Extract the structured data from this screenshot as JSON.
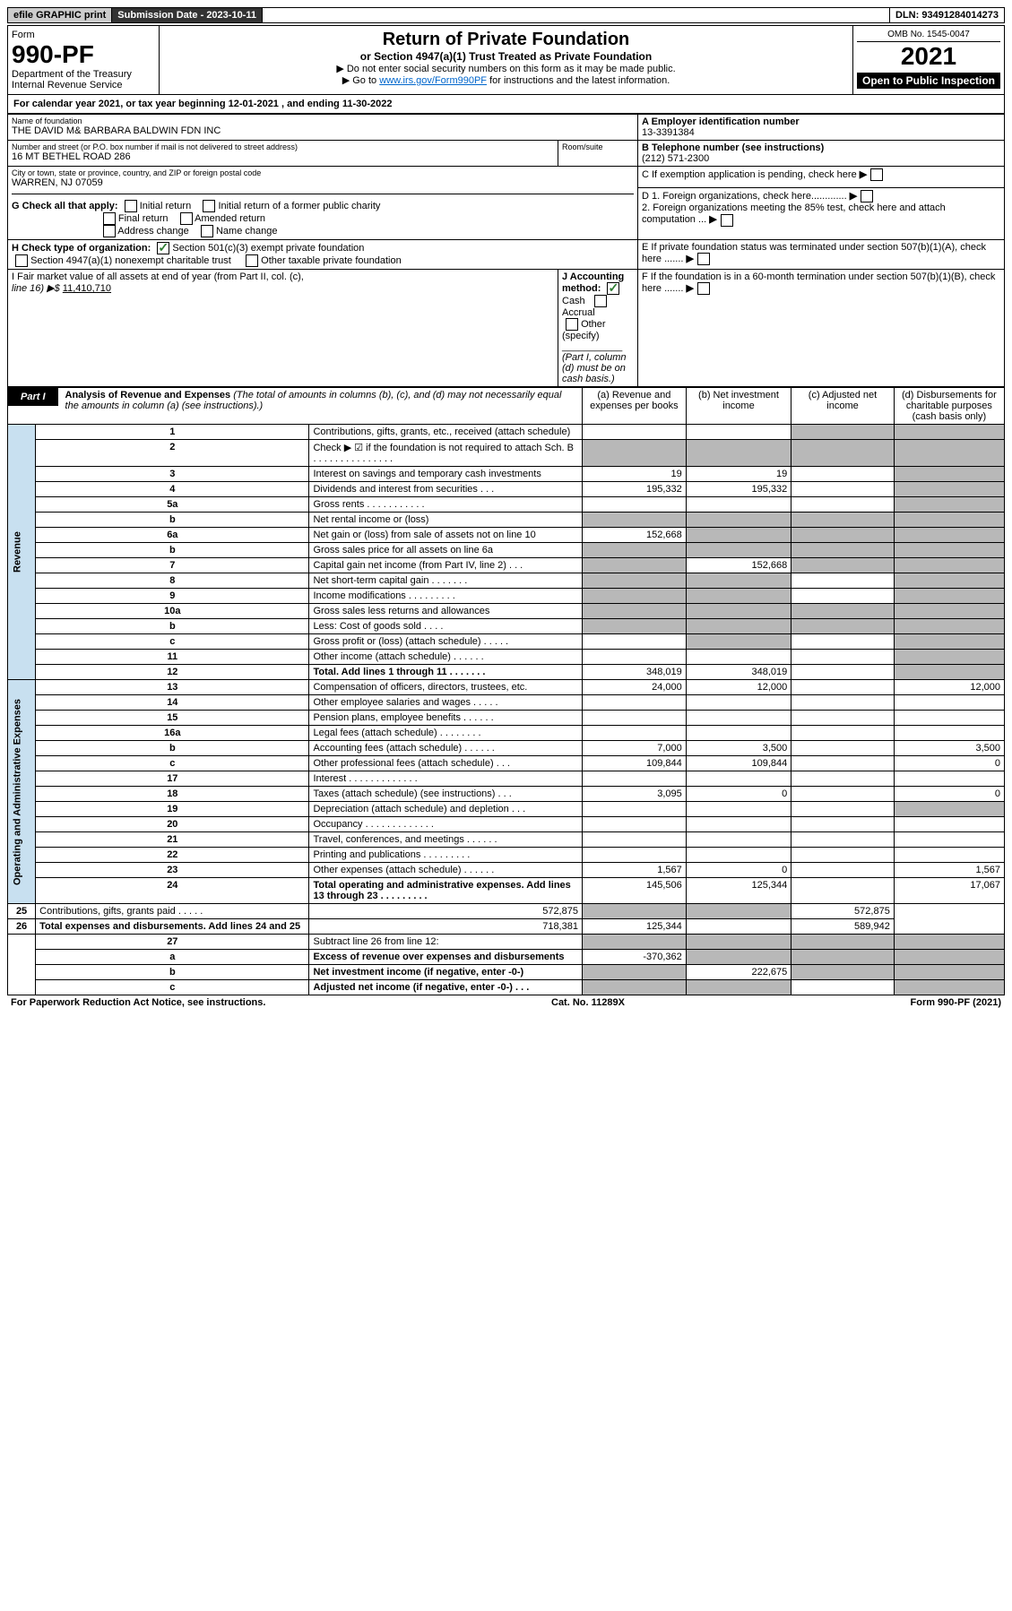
{
  "topbar": {
    "efile": "efile GRAPHIC print",
    "subdate_label": "Submission Date - 2023-10-11",
    "dln": "DLN: 93491284014273"
  },
  "header": {
    "form_word": "Form",
    "form_no": "990-PF",
    "dept": "Department of the Treasury",
    "irs": "Internal Revenue Service",
    "title": "Return of Private Foundation",
    "subtitle": "or Section 4947(a)(1) Trust Treated as Private Foundation",
    "instr1": "▶ Do not enter social security numbers on this form as it may be made public.",
    "instr2_pre": "▶ Go to ",
    "instr2_link": "www.irs.gov/Form990PF",
    "instr2_post": " for instructions and the latest information.",
    "omb": "OMB No. 1545-0047",
    "year": "2021",
    "open": "Open to Public Inspection"
  },
  "calyear": {
    "text_pre": "For calendar year 2021, or tax year beginning ",
    "begin": "12-01-2021",
    "mid": " , and ending ",
    "end": "11-30-2022"
  },
  "id": {
    "name_label": "Name of foundation",
    "name": "THE DAVID M& BARBARA BALDWIN FDN INC",
    "addr_label": "Number and street (or P.O. box number if mail is not delivered to street address)",
    "room_label": "Room/suite",
    "addr": "16 MT BETHEL ROAD 286",
    "city_label": "City or town, state or province, country, and ZIP or foreign postal code",
    "city": "WARREN, NJ  07059",
    "A_label": "A Employer identification number",
    "A_val": "13-3391384",
    "B_label": "B Telephone number (see instructions)",
    "B_val": "(212) 571-2300",
    "C_label": "C If exemption application is pending, check here",
    "D1": "D 1. Foreign organizations, check here.............",
    "D2": "2. Foreign organizations meeting the 85% test, check here and attach computation ...",
    "E": "E  If private foundation status was terminated under section 507(b)(1)(A), check here .......",
    "F": "F  If the foundation is in a 60-month termination under section 507(b)(1)(B), check here .......",
    "G_label": "G Check all that apply:",
    "G_opts": [
      "Initial return",
      "Initial return of a former public charity",
      "Final return",
      "Amended return",
      "Address change",
      "Name change"
    ],
    "H_label": "H Check type of organization:",
    "H_opt1": "Section 501(c)(3) exempt private foundation",
    "H_opt2": "Section 4947(a)(1) nonexempt charitable trust",
    "H_opt3": "Other taxable private foundation",
    "I_label": "I Fair market value of all assets at end of year (from Part II, col. (c),",
    "I_line": "line 16) ▶$ ",
    "I_val": "11,410,710",
    "J_label": "J Accounting method:",
    "J_cash": "Cash",
    "J_accrual": "Accrual",
    "J_other": "Other (specify)",
    "J_note": "(Part I, column (d) must be on cash basis.)"
  },
  "part1": {
    "label": "Part I",
    "title": "Analysis of Revenue and Expenses",
    "note": " (The total of amounts in columns (b), (c), and (d) may not necessarily equal the amounts in column (a) (see instructions).)",
    "col_a": "(a)   Revenue and expenses per books",
    "col_b": "(b)   Net investment income",
    "col_c": "(c)   Adjusted net income",
    "col_d": "(d)   Disbursements for charitable purposes (cash basis only)",
    "sidelabels": {
      "rev": "Revenue",
      "exp": "Operating and Administrative Expenses"
    }
  },
  "rows": [
    {
      "n": "1",
      "d": "Contributions, gifts, grants, etc., received (attach schedule)",
      "a": "",
      "b": "",
      "c": "shade",
      "dd": "shade"
    },
    {
      "n": "2",
      "d": "Check ▶ ☑ if the foundation is not required to attach Sch. B      .   .   .   .   .   .   .   .   .   .   .   .   .   .   .",
      "a": "shade",
      "b": "shade",
      "c": "shade",
      "dd": "shade"
    },
    {
      "n": "3",
      "d": "Interest on savings and temporary cash investments",
      "a": "19",
      "b": "19",
      "c": "",
      "dd": "shade"
    },
    {
      "n": "4",
      "d": "Dividends and interest from securities    .   .   .",
      "a": "195,332",
      "b": "195,332",
      "c": "",
      "dd": "shade"
    },
    {
      "n": "5a",
      "d": "Gross rents      .   .   .   .   .   .   .   .   .   .   .",
      "a": "",
      "b": "",
      "c": "",
      "dd": "shade"
    },
    {
      "n": "b",
      "d": "Net rental income or (loss)  ",
      "a": "shade",
      "b": "shade",
      "c": "shade",
      "dd": "shade"
    },
    {
      "n": "6a",
      "d": "Net gain or (loss) from sale of assets not on line 10",
      "a": "152,668",
      "b": "shade",
      "c": "shade",
      "dd": "shade"
    },
    {
      "n": "b",
      "d": "Gross sales price for all assets on line 6a",
      "a": "shade",
      "b": "shade",
      "c": "shade",
      "dd": "shade"
    },
    {
      "n": "7",
      "d": "Capital gain net income (from Part IV, line 2)    .   .   .",
      "a": "shade",
      "b": "152,668",
      "c": "shade",
      "dd": "shade"
    },
    {
      "n": "8",
      "d": "Net short-term capital gain    .   .   .   .   .   .   .",
      "a": "shade",
      "b": "shade",
      "c": "",
      "dd": "shade"
    },
    {
      "n": "9",
      "d": "Income modifications  .   .   .   .   .   .   .   .   .",
      "a": "shade",
      "b": "shade",
      "c": "",
      "dd": "shade"
    },
    {
      "n": "10a",
      "d": "Gross sales less returns and allowances",
      "a": "shade",
      "b": "shade",
      "c": "shade",
      "dd": "shade"
    },
    {
      "n": "b",
      "d": "Less: Cost of goods sold    .   .   .   .",
      "a": "shade",
      "b": "shade",
      "c": "shade",
      "dd": "shade"
    },
    {
      "n": "c",
      "d": "Gross profit or (loss) (attach schedule)    .   .   .   .   .",
      "a": "",
      "b": "shade",
      "c": "",
      "dd": "shade"
    },
    {
      "n": "11",
      "d": "Other income (attach schedule)    .   .   .   .   .   .",
      "a": "",
      "b": "",
      "c": "",
      "dd": "shade"
    },
    {
      "n": "12",
      "d": "Total. Add lines 1 through 11    .   .   .   .   .   .   .",
      "bold": true,
      "a": "348,019",
      "b": "348,019",
      "c": "",
      "dd": "shade"
    },
    {
      "n": "13",
      "d": "Compensation of officers, directors, trustees, etc.",
      "a": "24,000",
      "b": "12,000",
      "c": "",
      "dd": "12,000"
    },
    {
      "n": "14",
      "d": "Other employee salaries and wages    .   .   .   .   .",
      "a": "",
      "b": "",
      "c": "",
      "dd": ""
    },
    {
      "n": "15",
      "d": "Pension plans, employee benefits   .   .   .   .   .   .",
      "a": "",
      "b": "",
      "c": "",
      "dd": ""
    },
    {
      "n": "16a",
      "d": "Legal fees (attach schedule)  .   .   .   .   .   .   .   .",
      "a": "",
      "b": "",
      "c": "",
      "dd": ""
    },
    {
      "n": "b",
      "d": "Accounting fees (attach schedule)  .   .   .   .   .   .",
      "a": "7,000",
      "b": "3,500",
      "c": "",
      "dd": "3,500"
    },
    {
      "n": "c",
      "d": "Other professional fees (attach schedule)    .   .   .",
      "a": "109,844",
      "b": "109,844",
      "c": "",
      "dd": "0"
    },
    {
      "n": "17",
      "d": "Interest   .   .   .   .   .   .   .   .   .   .   .   .   .",
      "a": "",
      "b": "",
      "c": "",
      "dd": ""
    },
    {
      "n": "18",
      "d": "Taxes (attach schedule) (see instructions)    .   .   .",
      "a": "3,095",
      "b": "0",
      "c": "",
      "dd": "0"
    },
    {
      "n": "19",
      "d": "Depreciation (attach schedule) and depletion    .   .   .",
      "a": "",
      "b": "",
      "c": "",
      "dd": "shade"
    },
    {
      "n": "20",
      "d": "Occupancy  .   .   .   .   .   .   .   .   .   .   .   .   .",
      "a": "",
      "b": "",
      "c": "",
      "dd": ""
    },
    {
      "n": "21",
      "d": "Travel, conferences, and meetings  .   .   .   .   .   .",
      "a": "",
      "b": "",
      "c": "",
      "dd": ""
    },
    {
      "n": "22",
      "d": "Printing and publications  .   .   .   .   .   .   .   .   .",
      "a": "",
      "b": "",
      "c": "",
      "dd": ""
    },
    {
      "n": "23",
      "d": "Other expenses (attach schedule)  .   .   .   .   .   .",
      "a": "1,567",
      "b": "0",
      "c": "",
      "dd": "1,567"
    },
    {
      "n": "24",
      "d": "Total operating and administrative expenses. Add lines 13 through 23    .   .   .   .   .   .   .   .   .",
      "bold": true,
      "a": "145,506",
      "b": "125,344",
      "c": "",
      "dd": "17,067"
    },
    {
      "n": "25",
      "d": "Contributions, gifts, grants paid    .   .   .   .   .",
      "a": "572,875",
      "b": "shade",
      "c": "shade",
      "dd": "572,875"
    },
    {
      "n": "26",
      "d": "Total expenses and disbursements. Add lines 24 and 25",
      "bold": true,
      "a": "718,381",
      "b": "125,344",
      "c": "",
      "dd": "589,942"
    },
    {
      "n": "27",
      "d": "Subtract line 26 from line 12:",
      "a": "shade",
      "b": "shade",
      "c": "shade",
      "dd": "shade"
    },
    {
      "n": "a",
      "d": "Excess of revenue over expenses and disbursements",
      "bold": true,
      "a": "-370,362",
      "b": "shade",
      "c": "shade",
      "dd": "shade"
    },
    {
      "n": "b",
      "d": "Net investment income (if negative, enter -0-)",
      "bold": true,
      "a": "shade",
      "b": "222,675",
      "c": "shade",
      "dd": "shade"
    },
    {
      "n": "c",
      "d": "Adjusted net income (if negative, enter -0-)    .   .   .",
      "bold": true,
      "a": "shade",
      "b": "shade",
      "c": "",
      "dd": "shade"
    }
  ],
  "footer": {
    "left": "For Paperwork Reduction Act Notice, see instructions.",
    "mid": "Cat. No. 11289X",
    "right": "Form 990-PF (2021)"
  }
}
